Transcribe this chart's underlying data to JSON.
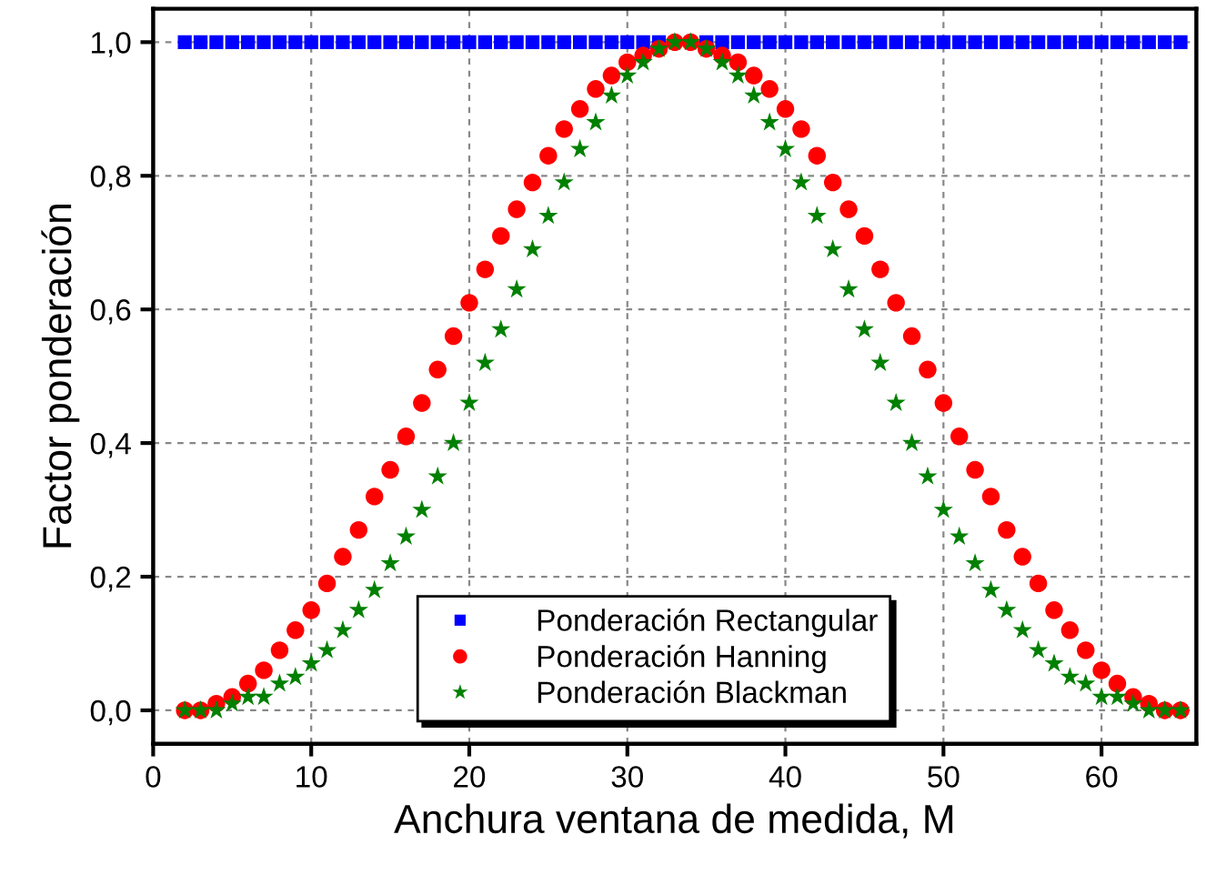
{
  "chart_data": {
    "type": "scatter",
    "xlabel": "Anchura ventana de medida, M",
    "ylabel": "Factor ponderación",
    "x": [
      2,
      3,
      4,
      5,
      6,
      7,
      8,
      9,
      10,
      11,
      12,
      13,
      14,
      15,
      16,
      17,
      18,
      19,
      20,
      21,
      22,
      23,
      24,
      25,
      26,
      27,
      28,
      29,
      30,
      31,
      32,
      33,
      34,
      35,
      36,
      37,
      38,
      39,
      40,
      41,
      42,
      43,
      44,
      45,
      46,
      47,
      48,
      49,
      50,
      51,
      52,
      53,
      54,
      55,
      56,
      57,
      58,
      59,
      60,
      61,
      62,
      63,
      64,
      65
    ],
    "series": [
      {
        "name": "Ponderación Rectangular",
        "color": "#0000ff",
        "marker": "square",
        "values": [
          1,
          1,
          1,
          1,
          1,
          1,
          1,
          1,
          1,
          1,
          1,
          1,
          1,
          1,
          1,
          1,
          1,
          1,
          1,
          1,
          1,
          1,
          1,
          1,
          1,
          1,
          1,
          1,
          1,
          1,
          1,
          null,
          null,
          1,
          1,
          1,
          1,
          1,
          1,
          1,
          1,
          1,
          1,
          1,
          1,
          1,
          1,
          1,
          1,
          1,
          1,
          1,
          1,
          1,
          1,
          1,
          1,
          1,
          1,
          1,
          1,
          1,
          1,
          1
        ]
      },
      {
        "name": "Ponderación Hanning",
        "color": "#ff0000",
        "marker": "circle",
        "values": [
          0,
          0,
          0.01,
          0.02,
          0.04,
          0.06,
          0.09,
          0.12,
          0.15,
          0.19,
          0.23,
          0.27,
          0.32,
          0.36,
          0.41,
          0.46,
          0.51,
          0.56,
          0.61,
          0.66,
          0.71,
          0.75,
          0.79,
          0.83,
          0.87,
          0.9,
          0.93,
          0.95,
          0.97,
          0.98,
          0.99,
          1.0,
          1.0,
          0.99,
          0.98,
          0.97,
          0.95,
          0.93,
          0.9,
          0.87,
          0.83,
          0.79,
          0.75,
          0.71,
          0.66,
          0.61,
          0.56,
          0.51,
          0.46,
          0.41,
          0.36,
          0.32,
          0.27,
          0.23,
          0.19,
          0.15,
          0.12,
          0.09,
          0.06,
          0.04,
          0.02,
          0.01,
          0,
          0
        ]
      },
      {
        "name": "Ponderación Blackman",
        "color": "#008000",
        "marker": "star",
        "values": [
          0,
          0,
          0,
          0.01,
          0.02,
          0.02,
          0.04,
          0.05,
          0.07,
          0.09,
          0.12,
          0.15,
          0.18,
          0.22,
          0.26,
          0.3,
          0.35,
          0.4,
          0.46,
          0.52,
          0.57,
          0.63,
          0.69,
          0.74,
          0.79,
          0.84,
          0.88,
          0.92,
          0.95,
          0.97,
          0.99,
          1.0,
          1.0,
          0.99,
          0.97,
          0.95,
          0.92,
          0.88,
          0.84,
          0.79,
          0.74,
          0.69,
          0.63,
          0.57,
          0.52,
          0.46,
          0.4,
          0.35,
          0.3,
          0.26,
          0.22,
          0.18,
          0.15,
          0.12,
          0.09,
          0.07,
          0.05,
          0.04,
          0.02,
          0.02,
          0.01,
          0,
          0,
          0
        ]
      }
    ],
    "xlim": [
      0,
      66
    ],
    "xticks": [
      0,
      10,
      20,
      30,
      40,
      50,
      60
    ],
    "ylim": [
      -0.05,
      1.05
    ],
    "yticks": [
      {
        "value": 0,
        "label": "0,0"
      },
      {
        "value": 0.2,
        "label": "0,2"
      },
      {
        "value": 0.4,
        "label": "0,4"
      },
      {
        "value": 0.6,
        "label": "0,6"
      },
      {
        "value": 0.8,
        "label": "0,8"
      },
      {
        "value": 1.0,
        "label": "1,0"
      }
    ],
    "grid": true,
    "legend": "bottom"
  }
}
